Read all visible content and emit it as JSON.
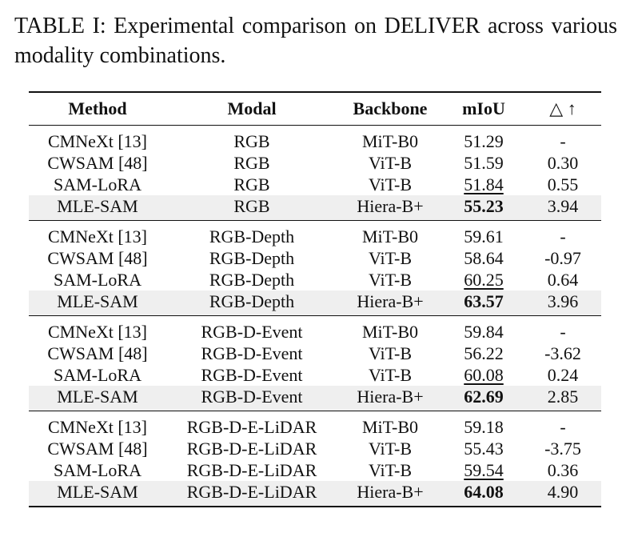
{
  "caption": "TABLE I: Experimental comparison on DELIVER across various modality combinations.",
  "table": {
    "headers": {
      "method": "Method",
      "modal": "Modal",
      "backbone": "Backbone",
      "miou": "mIoU",
      "delta": "△ ↑"
    },
    "groups": [
      {
        "rows": [
          {
            "method": "CMNeXt [13]",
            "modal": "RGB",
            "backbone": "MiT-B0",
            "miou": "51.29",
            "delta": "-"
          },
          {
            "method": "CWSAM [48]",
            "modal": "RGB",
            "backbone": "ViT-B",
            "miou": "51.59",
            "delta": "0.30"
          },
          {
            "method": "SAM-LoRA",
            "modal": "RGB",
            "backbone": "ViT-B",
            "miou": "51.84",
            "delta": "0.55"
          },
          {
            "method": "MLE-SAM",
            "modal": "RGB",
            "backbone": "Hiera-B+",
            "miou": "55.23",
            "delta": "3.94"
          }
        ]
      },
      {
        "rows": [
          {
            "method": "CMNeXt [13]",
            "modal": "RGB-Depth",
            "backbone": "MiT-B0",
            "miou": "59.61",
            "delta": "-"
          },
          {
            "method": "CWSAM [48]",
            "modal": "RGB-Depth",
            "backbone": "ViT-B",
            "miou": "58.64",
            "delta": "-0.97"
          },
          {
            "method": "SAM-LoRA",
            "modal": "RGB-Depth",
            "backbone": "ViT-B",
            "miou": "60.25",
            "delta": "0.64"
          },
          {
            "method": "MLE-SAM",
            "modal": "RGB-Depth",
            "backbone": "Hiera-B+",
            "miou": "63.57",
            "delta": "3.96"
          }
        ]
      },
      {
        "rows": [
          {
            "method": "CMNeXt [13]",
            "modal": "RGB-D-Event",
            "backbone": "MiT-B0",
            "miou": "59.84",
            "delta": "-"
          },
          {
            "method": "CWSAM [48]",
            "modal": "RGB-D-Event",
            "backbone": "ViT-B",
            "miou": "56.22",
            "delta": "-3.62"
          },
          {
            "method": "SAM-LoRA",
            "modal": "RGB-D-Event",
            "backbone": "ViT-B",
            "miou": "60.08",
            "delta": "0.24"
          },
          {
            "method": "MLE-SAM",
            "modal": "RGB-D-Event",
            "backbone": "Hiera-B+",
            "miou": "62.69",
            "delta": "2.85"
          }
        ]
      },
      {
        "rows": [
          {
            "method": "CMNeXt [13]",
            "modal": "RGB-D-E-LiDAR",
            "backbone": "MiT-B0",
            "miou": "59.18",
            "delta": "-"
          },
          {
            "method": "CWSAM [48]",
            "modal": "RGB-D-E-LiDAR",
            "backbone": "ViT-B",
            "miou": "55.43",
            "delta": "-3.75"
          },
          {
            "method": "SAM-LoRA",
            "modal": "RGB-D-E-LiDAR",
            "backbone": "ViT-B",
            "miou": "59.54",
            "delta": "0.36"
          },
          {
            "method": "MLE-SAM",
            "modal": "RGB-D-E-LiDAR",
            "backbone": "Hiera-B+",
            "miou": "64.08",
            "delta": "4.90"
          }
        ]
      }
    ]
  }
}
